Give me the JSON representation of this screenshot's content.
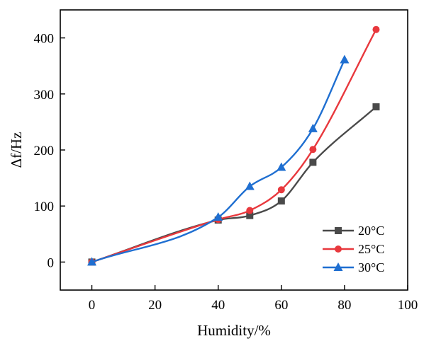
{
  "chart_data": {
    "type": "line",
    "xlabel": "Humidity/%",
    "ylabel": "Δf/Hz",
    "xlim": [
      -10,
      100
    ],
    "ylim": [
      -50,
      450
    ],
    "xticks": [
      0,
      20,
      40,
      60,
      80,
      100
    ],
    "yticks": [
      0,
      100,
      200,
      300,
      400
    ],
    "grid": false,
    "legend_position": "bottom-right",
    "series": [
      {
        "name": "20°C",
        "color": "#4a4a4a",
        "marker": "square",
        "x": [
          0,
          40,
          50,
          60,
          70,
          90
        ],
        "y": [
          0,
          75,
          83,
          109,
          178,
          277
        ]
      },
      {
        "name": "25°C",
        "color": "#e8383d",
        "marker": "circle",
        "x": [
          0,
          40,
          50,
          60,
          70,
          90
        ],
        "y": [
          0,
          76,
          92,
          129,
          201,
          415
        ]
      },
      {
        "name": "30°C",
        "color": "#1f6fd1",
        "marker": "triangle",
        "x": [
          0,
          40,
          50,
          60,
          70,
          80
        ],
        "y": [
          0,
          80,
          135,
          169,
          238,
          361
        ]
      }
    ]
  }
}
